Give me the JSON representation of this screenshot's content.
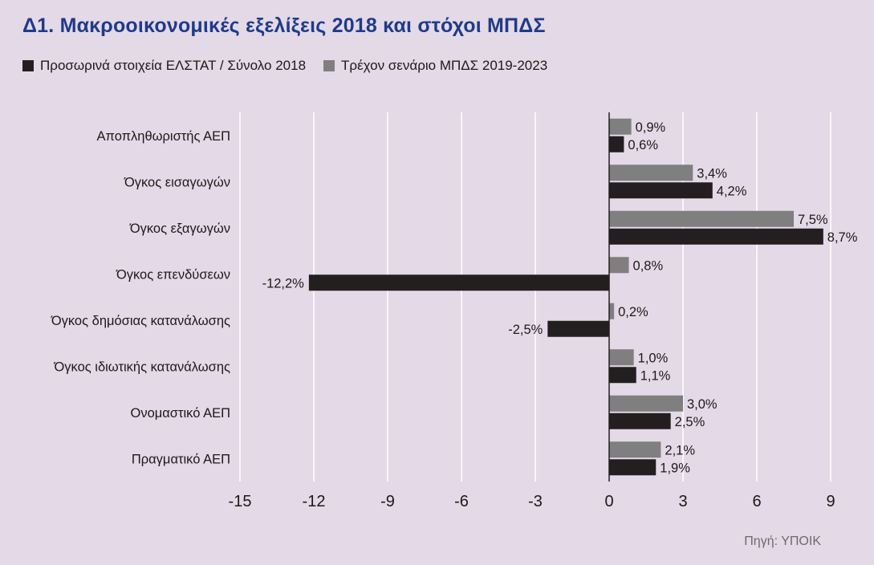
{
  "title": "Δ1. Μακροοικονομικές εξελίξεις 2018 και στόχοι ΜΠΔΣ",
  "source": "Πηγή: ΥΠΟΙΚ",
  "colors": {
    "background": "#e4d9e6",
    "title": "#1f3a8a",
    "series_2018": "#231f20",
    "series_plan": "#7f7f7f"
  },
  "legend": {
    "items": [
      {
        "label": "Προσωρινά στοιχεία ΕΛΣΤΑΤ / Σύνολο 2018",
        "color": "#231f20"
      },
      {
        "label": "Τρέχον σενάριο ΜΠΔΣ 2019-2023",
        "color": "#7f7f7f"
      }
    ]
  },
  "chart_data": {
    "type": "bar",
    "orientation": "horizontal",
    "categories": [
      "Αποπληθωριστής ΑΕΠ",
      "Όγκος εισαγωγών",
      "Όγκος εξαγωγών",
      "Όγκος επενδύσεων",
      "Όγκος δημόσιας κατανάλωσης",
      "Όγκος ιδιωτικής κατανάλωσης",
      "Ονομαστικό ΑΕΠ",
      "Πραγματικό ΑΕΠ"
    ],
    "series": [
      {
        "name": "Τρέχον σενάριο ΜΠΔΣ 2019-2023",
        "color": "#7f7f7f",
        "values": [
          0.9,
          3.4,
          7.5,
          0.8,
          0.2,
          1.0,
          3.0,
          2.1
        ],
        "labels": [
          "0,9%",
          "3,4%",
          "7,5%",
          "0,8%",
          "0,2%",
          "1,0%",
          "3,0%",
          "2,1%"
        ]
      },
      {
        "name": "Προσωρινά στοιχεία ΕΛΣΤΑΤ / Σύνολο 2018",
        "color": "#231f20",
        "values": [
          0.6,
          4.2,
          8.7,
          -12.2,
          -2.5,
          1.1,
          2.5,
          1.9
        ],
        "labels": [
          "0,6%",
          "4,2%",
          "8,7%",
          "-12,2%",
          "-2,5%",
          "1,1%",
          "2,5%",
          "1,9%"
        ]
      }
    ],
    "xlim": [
      -15,
      9
    ],
    "xticks": [
      -15,
      -12,
      -9,
      -6,
      -3,
      0,
      3,
      6,
      9
    ],
    "xtick_labels": [
      "-15",
      "-12",
      "-9",
      "-6",
      "-3",
      "0",
      "3",
      "6",
      "9"
    ],
    "grid": "vertical",
    "legend_position": "top-left"
  }
}
